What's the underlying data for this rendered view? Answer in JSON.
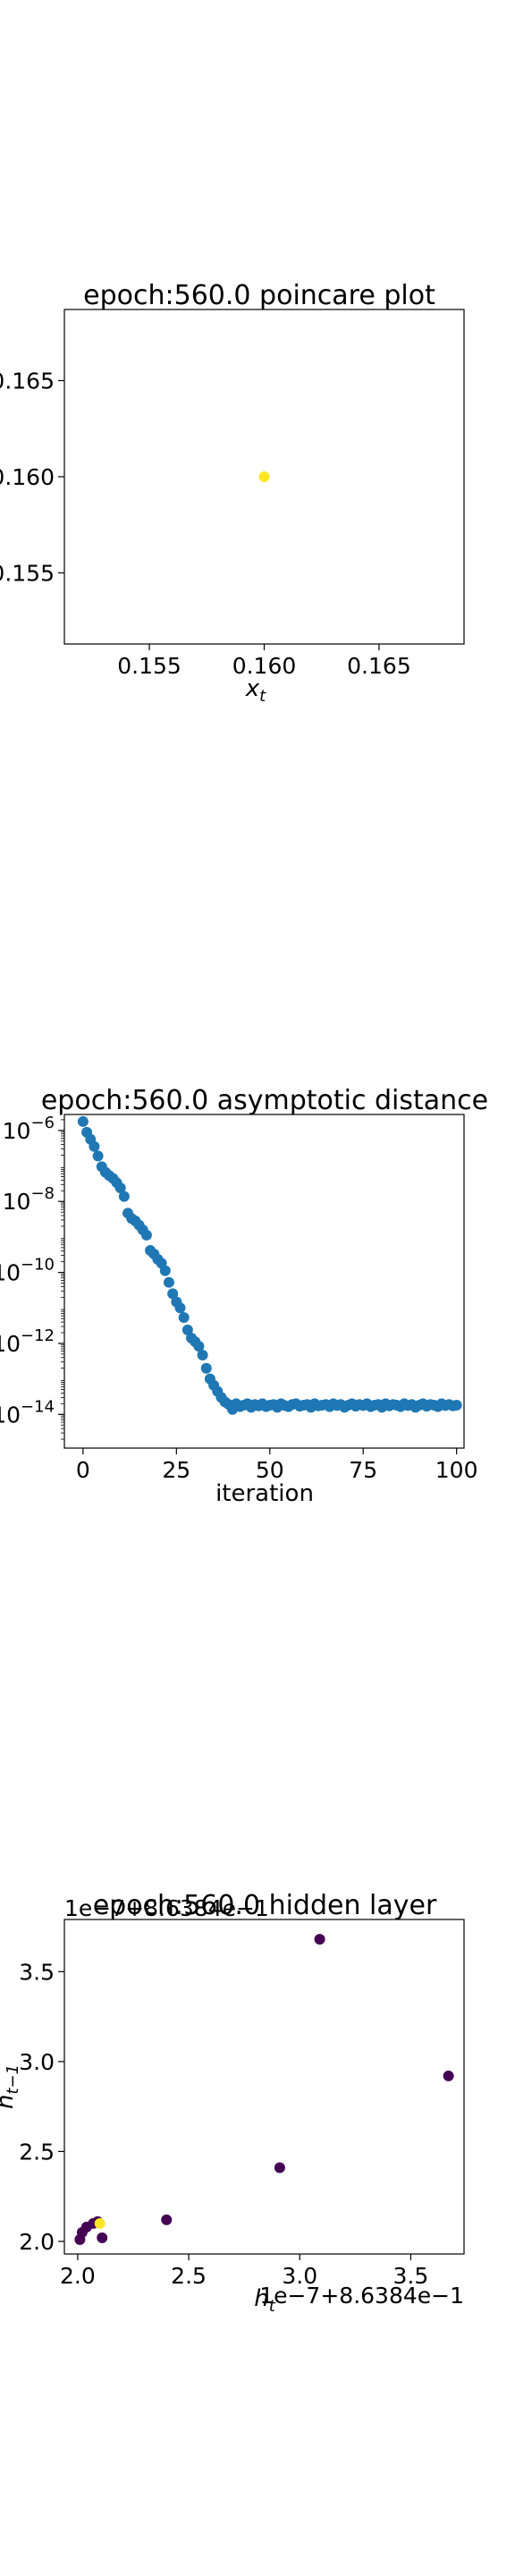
{
  "chart_data": [
    {
      "type": "scatter",
      "title": "epoch:560.0 poincare plot",
      "xlabel": "x_t",
      "ylabel": "",
      "xlim": [
        0.1513,
        0.1687
      ],
      "ylim": [
        0.1513,
        0.1687
      ],
      "xticks": [
        0.155,
        0.16,
        0.165
      ],
      "yticks": [
        0.155,
        0.16,
        0.165
      ],
      "x_tick_labels": [
        "0.155",
        "0.160",
        "0.165"
      ],
      "y_tick_labels": [
        "0.155",
        "0.160",
        "0.165"
      ],
      "points": [
        {
          "x": 0.16,
          "y": 0.16
        }
      ],
      "point_color": "#fde725",
      "grid": false
    },
    {
      "type": "scatter",
      "title": "epoch:560.0 asymptotic distance",
      "xlabel": "iteration",
      "ylabel": "",
      "yscale": "log",
      "xlim": [
        -5,
        102
      ],
      "ylim_log10": [
        -14.95,
        -5.55
      ],
      "xticks": [
        0,
        25,
        50,
        75,
        100
      ],
      "x_tick_labels": [
        "0",
        "25",
        "50",
        "75",
        "100"
      ],
      "yticks_log10": [
        -14,
        -12,
        -10,
        -8,
        -6
      ],
      "y_tick_labels": [
        "10−14",
        "10−12",
        "10−10",
        "10−8",
        "10−6"
      ],
      "point_color": "#1f77b4",
      "grid": false,
      "log10_values": [
        -5.75,
        -6.05,
        -6.25,
        -6.45,
        -6.72,
        -7.02,
        -7.18,
        -7.27,
        -7.35,
        -7.47,
        -7.62,
        -7.86,
        -8.33,
        -8.48,
        -8.55,
        -8.67,
        -8.8,
        -8.95,
        -9.38,
        -9.48,
        -9.63,
        -9.74,
        -9.95,
        -10.28,
        -10.6,
        -10.83,
        -11.0,
        -11.27,
        -11.62,
        -11.85,
        -11.95,
        -12.08,
        -12.33,
        -12.7,
        -13.0,
        -13.18,
        -13.35,
        -13.52,
        -13.65,
        -13.72,
        -13.86,
        -13.7,
        -13.78,
        -13.74,
        -13.7,
        -13.8,
        -13.72,
        -13.76,
        -13.7,
        -13.78,
        -13.74,
        -13.72,
        -13.8,
        -13.7,
        -13.75,
        -13.78,
        -13.72,
        -13.7,
        -13.77,
        -13.74,
        -13.72,
        -13.8,
        -13.7,
        -13.76,
        -13.74,
        -13.72,
        -13.78,
        -13.7,
        -13.75,
        -13.72,
        -13.8,
        -13.74,
        -13.7,
        -13.77,
        -13.72,
        -13.75,
        -13.7,
        -13.78,
        -13.74,
        -13.72,
        -13.8,
        -13.7,
        -13.76,
        -13.72,
        -13.74,
        -13.78,
        -13.7,
        -13.75,
        -13.72,
        -13.8,
        -13.74,
        -13.7,
        -13.77,
        -13.72,
        -13.74,
        -13.78,
        -13.7,
        -13.75,
        -13.72,
        -13.76,
        -13.74
      ]
    },
    {
      "type": "scatter",
      "title": "epoch:560.0 hidden layer",
      "xlabel": "h_t",
      "ylabel": "h_{t−1}",
      "x_offset_text": "1e−7+8.6384e−1",
      "y_offset_text": "1e−7+8.6384e−1",
      "xlim": [
        1.94,
        3.74
      ],
      "ylim": [
        1.93,
        3.79
      ],
      "xticks": [
        2.0,
        2.5,
        3.0,
        3.5
      ],
      "x_tick_labels": [
        "2.0",
        "2.5",
        "3.0",
        "3.5"
      ],
      "yticks": [
        2.0,
        2.5,
        3.0,
        3.5
      ],
      "y_tick_labels": [
        "2.0",
        "2.5",
        "3.0",
        "3.5"
      ],
      "grid": false,
      "points": [
        {
          "x": 3.09,
          "y": 3.68,
          "color": "#440154"
        },
        {
          "x": 3.67,
          "y": 2.92,
          "color": "#440154"
        },
        {
          "x": 2.91,
          "y": 2.41,
          "color": "#440154"
        },
        {
          "x": 2.4,
          "y": 2.12,
          "color": "#440154"
        },
        {
          "x": 2.11,
          "y": 2.02,
          "color": "#440154"
        },
        {
          "x": 2.02,
          "y": 2.05,
          "color": "#440154"
        },
        {
          "x": 2.01,
          "y": 2.01,
          "color": "#440154"
        },
        {
          "x": 2.04,
          "y": 2.08,
          "color": "#440154"
        },
        {
          "x": 2.07,
          "y": 2.1,
          "color": "#440154"
        },
        {
          "x": 2.09,
          "y": 2.11,
          "color": "#440154"
        },
        {
          "x": 2.1,
          "y": 2.1,
          "color": "#fde725"
        }
      ]
    }
  ]
}
